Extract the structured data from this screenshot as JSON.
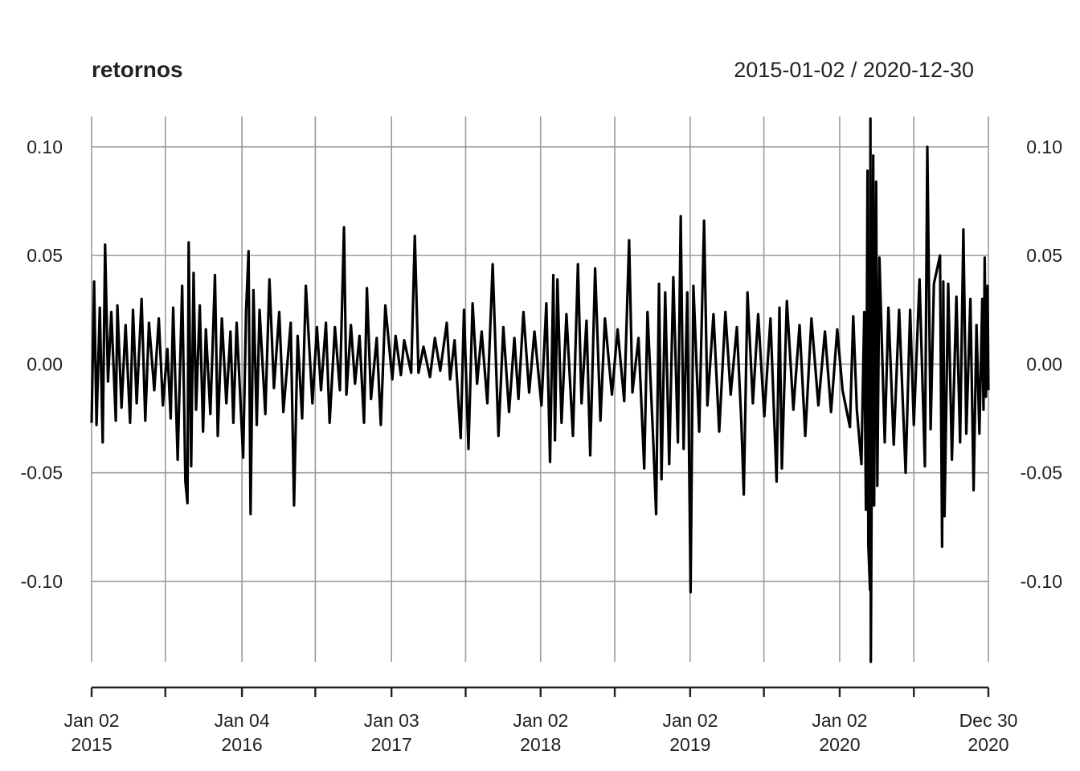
{
  "chart_data": {
    "type": "line",
    "title": "retornos",
    "date_range": "2015-01-02 / 2020-12-30",
    "x_start": "2015-01-02",
    "x_end": "2020-12-30",
    "ylim": [
      -0.137,
      0.114
    ],
    "y_ticks": [
      0.1,
      0.05,
      0.0,
      -0.05,
      -0.1
    ],
    "y_tick_labels": [
      "0.10",
      "0.05",
      "0.00",
      "-0.05",
      "-0.10"
    ],
    "x_gridlines": [
      "2015-01-02",
      "2015-07-01",
      "2016-01-04",
      "2016-07-01",
      "2017-01-03",
      "2017-07-03",
      "2018-01-02",
      "2018-07-02",
      "2019-01-02",
      "2019-07-01",
      "2020-01-02",
      "2020-07-01",
      "2020-12-30"
    ],
    "x_labels": [
      {
        "date": "2015-01-02",
        "line1": "Jan 02",
        "line2": "2015"
      },
      {
        "date": "2016-01-04",
        "line1": "Jan 04",
        "line2": "2016"
      },
      {
        "date": "2017-01-03",
        "line1": "Jan 03",
        "line2": "2017"
      },
      {
        "date": "2018-01-02",
        "line1": "Jan 02",
        "line2": "2018"
      },
      {
        "date": "2019-01-02",
        "line1": "Jan 02",
        "line2": "2019"
      },
      {
        "date": "2020-01-02",
        "line1": "Jan 02",
        "line2": "2020"
      },
      {
        "date": "2020-12-30",
        "line1": "Dec 30",
        "line2": "2020"
      }
    ],
    "grid": true,
    "series": [
      {
        "color": "#000000",
        "points": [
          [
            "2015-01-02",
            -0.027
          ],
          [
            "2015-01-08",
            0.038
          ],
          [
            "2015-01-14",
            -0.028
          ],
          [
            "2015-01-22",
            0.026
          ],
          [
            "2015-01-29",
            -0.036
          ],
          [
            "2015-02-04",
            0.055
          ],
          [
            "2015-02-11",
            -0.008
          ],
          [
            "2015-02-19",
            0.024
          ],
          [
            "2015-03-02",
            -0.026
          ],
          [
            "2015-03-06",
            0.027
          ],
          [
            "2015-03-16",
            -0.02
          ],
          [
            "2015-03-26",
            0.018
          ],
          [
            "2015-04-06",
            -0.027
          ],
          [
            "2015-04-13",
            0.025
          ],
          [
            "2015-04-22",
            -0.018
          ],
          [
            "2015-05-04",
            0.03
          ],
          [
            "2015-05-13",
            -0.026
          ],
          [
            "2015-05-22",
            0.019
          ],
          [
            "2015-06-04",
            -0.012
          ],
          [
            "2015-06-15",
            0.021
          ],
          [
            "2015-06-25",
            -0.019
          ],
          [
            "2015-07-06",
            0.007
          ],
          [
            "2015-07-14",
            -0.025
          ],
          [
            "2015-07-20",
            0.026
          ],
          [
            "2015-07-31",
            -0.044
          ],
          [
            "2015-08-11",
            0.036
          ],
          [
            "2015-08-19",
            -0.054
          ],
          [
            "2015-08-24",
            -0.064
          ],
          [
            "2015-08-27",
            0.056
          ],
          [
            "2015-09-02",
            -0.047
          ],
          [
            "2015-09-08",
            0.042
          ],
          [
            "2015-09-14",
            -0.021
          ],
          [
            "2015-09-23",
            0.027
          ],
          [
            "2015-10-01",
            -0.031
          ],
          [
            "2015-10-08",
            0.016
          ],
          [
            "2015-10-19",
            -0.023
          ],
          [
            "2015-10-30",
            0.041
          ],
          [
            "2015-11-06",
            -0.033
          ],
          [
            "2015-11-16",
            0.021
          ],
          [
            "2015-11-27",
            -0.018
          ],
          [
            "2015-12-07",
            0.015
          ],
          [
            "2015-12-14",
            -0.027
          ],
          [
            "2015-12-22",
            0.019
          ],
          [
            "2016-01-07",
            -0.043
          ],
          [
            "2016-01-14",
            0.024
          ],
          [
            "2016-01-20",
            0.052
          ],
          [
            "2016-01-25",
            -0.069
          ],
          [
            "2016-02-01",
            0.034
          ],
          [
            "2016-02-09",
            -0.028
          ],
          [
            "2016-02-16",
            0.025
          ],
          [
            "2016-03-01",
            -0.023
          ],
          [
            "2016-03-11",
            0.039
          ],
          [
            "2016-03-22",
            -0.011
          ],
          [
            "2016-04-04",
            0.024
          ],
          [
            "2016-04-14",
            -0.022
          ],
          [
            "2016-05-02",
            0.019
          ],
          [
            "2016-05-10",
            -0.065
          ],
          [
            "2016-05-19",
            0.013
          ],
          [
            "2016-05-30",
            -0.025
          ],
          [
            "2016-06-08",
            0.036
          ],
          [
            "2016-06-24",
            -0.018
          ],
          [
            "2016-07-05",
            0.017
          ],
          [
            "2016-07-15",
            -0.012
          ],
          [
            "2016-07-27",
            0.019
          ],
          [
            "2016-08-05",
            -0.027
          ],
          [
            "2016-08-18",
            0.017
          ],
          [
            "2016-08-30",
            -0.012
          ],
          [
            "2016-09-09",
            0.063
          ],
          [
            "2016-09-15",
            -0.014
          ],
          [
            "2016-09-26",
            0.018
          ],
          [
            "2016-10-06",
            -0.009
          ],
          [
            "2016-10-17",
            0.013
          ],
          [
            "2016-10-28",
            -0.027
          ],
          [
            "2016-11-04",
            0.035
          ],
          [
            "2016-11-14",
            -0.016
          ],
          [
            "2016-11-28",
            0.012
          ],
          [
            "2016-12-08",
            -0.028
          ],
          [
            "2016-12-19",
            0.027
          ],
          [
            "2017-01-05",
            -0.007
          ],
          [
            "2017-01-13",
            0.013
          ],
          [
            "2017-01-26",
            -0.005
          ],
          [
            "2017-02-03",
            0.011
          ],
          [
            "2017-02-20",
            -0.004
          ],
          [
            "2017-03-01",
            0.059
          ],
          [
            "2017-03-10",
            -0.004
          ],
          [
            "2017-03-22",
            0.008
          ],
          [
            "2017-04-07",
            -0.006
          ],
          [
            "2017-04-19",
            0.012
          ],
          [
            "2017-05-02",
            -0.003
          ],
          [
            "2017-05-18",
            0.019
          ],
          [
            "2017-05-26",
            -0.007
          ],
          [
            "2017-06-06",
            0.011
          ],
          [
            "2017-06-21",
            -0.034
          ],
          [
            "2017-06-29",
            0.025
          ],
          [
            "2017-07-10",
            -0.039
          ],
          [
            "2017-07-20",
            0.028
          ],
          [
            "2017-07-31",
            -0.009
          ],
          [
            "2017-08-11",
            0.015
          ],
          [
            "2017-08-25",
            -0.018
          ],
          [
            "2017-09-07",
            0.046
          ],
          [
            "2017-09-21",
            -0.033
          ],
          [
            "2017-10-03",
            0.017
          ],
          [
            "2017-10-17",
            -0.022
          ],
          [
            "2017-10-30",
            0.012
          ],
          [
            "2017-11-09",
            -0.016
          ],
          [
            "2017-11-21",
            0.024
          ],
          [
            "2017-12-05",
            -0.013
          ],
          [
            "2017-12-18",
            0.015
          ],
          [
            "2018-01-04",
            -0.019
          ],
          [
            "2018-01-16",
            0.028
          ],
          [
            "2018-01-25",
            -0.045
          ],
          [
            "2018-02-02",
            0.041
          ],
          [
            "2018-02-06",
            -0.035
          ],
          [
            "2018-02-12",
            0.039
          ],
          [
            "2018-02-22",
            -0.027
          ],
          [
            "2018-03-06",
            0.023
          ],
          [
            "2018-03-22",
            -0.033
          ],
          [
            "2018-04-03",
            0.046
          ],
          [
            "2018-04-12",
            -0.018
          ],
          [
            "2018-04-24",
            0.02
          ],
          [
            "2018-05-03",
            -0.042
          ],
          [
            "2018-05-15",
            0.044
          ],
          [
            "2018-05-28",
            -0.026
          ],
          [
            "2018-06-08",
            0.021
          ],
          [
            "2018-06-25",
            -0.014
          ],
          [
            "2018-07-09",
            0.016
          ],
          [
            "2018-07-25",
            -0.017
          ],
          [
            "2018-08-06",
            0.057
          ],
          [
            "2018-08-14",
            -0.013
          ],
          [
            "2018-08-29",
            0.012
          ],
          [
            "2018-09-12",
            -0.048
          ],
          [
            "2018-09-20",
            0.024
          ],
          [
            "2018-10-04",
            -0.036
          ],
          [
            "2018-10-11",
            -0.069
          ],
          [
            "2018-10-18",
            0.037
          ],
          [
            "2018-10-24",
            -0.053
          ],
          [
            "2018-11-02",
            0.033
          ],
          [
            "2018-11-12",
            -0.046
          ],
          [
            "2018-11-22",
            0.04
          ],
          [
            "2018-12-03",
            -0.036
          ],
          [
            "2018-12-10",
            0.068
          ],
          [
            "2018-12-17",
            -0.039
          ],
          [
            "2018-12-26",
            0.033
          ],
          [
            "2019-01-03",
            -0.105
          ],
          [
            "2019-01-10",
            0.036
          ],
          [
            "2019-01-24",
            -0.031
          ],
          [
            "2019-02-05",
            0.066
          ],
          [
            "2019-02-13",
            -0.019
          ],
          [
            "2019-02-28",
            0.023
          ],
          [
            "2019-03-14",
            -0.031
          ],
          [
            "2019-03-29",
            0.024
          ],
          [
            "2019-04-11",
            -0.014
          ],
          [
            "2019-04-26",
            0.017
          ],
          [
            "2019-05-07",
            -0.027
          ],
          [
            "2019-05-13",
            -0.06
          ],
          [
            "2019-05-22",
            0.033
          ],
          [
            "2019-06-04",
            -0.018
          ],
          [
            "2019-06-17",
            0.023
          ],
          [
            "2019-07-02",
            -0.024
          ],
          [
            "2019-07-17",
            0.021
          ],
          [
            "2019-08-01",
            -0.054
          ],
          [
            "2019-08-08",
            0.026
          ],
          [
            "2019-08-14",
            -0.048
          ],
          [
            "2019-08-26",
            0.029
          ],
          [
            "2019-09-11",
            -0.021
          ],
          [
            "2019-09-26",
            0.018
          ],
          [
            "2019-10-10",
            -0.033
          ],
          [
            "2019-10-25",
            0.021
          ],
          [
            "2019-11-11",
            -0.019
          ],
          [
            "2019-11-27",
            0.015
          ],
          [
            "2019-12-12",
            -0.022
          ],
          [
            "2019-12-27",
            0.016
          ],
          [
            "2020-01-09",
            -0.012
          ],
          [
            "2020-01-27",
            -0.029
          ],
          [
            "2020-02-04",
            0.022
          ],
          [
            "2020-02-13",
            -0.021
          ],
          [
            "2020-02-24",
            -0.046
          ],
          [
            "2020-03-02",
            0.024
          ],
          [
            "2020-03-06",
            -0.067
          ],
          [
            "2020-03-10",
            0.089
          ],
          [
            "2020-03-12",
            -0.083
          ],
          [
            "2020-03-16",
            -0.104
          ],
          [
            "2020-03-17",
            0.113
          ],
          [
            "2020-03-18",
            -0.137
          ],
          [
            "2020-03-24",
            0.096
          ],
          [
            "2020-03-26",
            -0.065
          ],
          [
            "2020-03-31",
            0.084
          ],
          [
            "2020-04-03",
            -0.056
          ],
          [
            "2020-04-08",
            0.049
          ],
          [
            "2020-04-21",
            -0.036
          ],
          [
            "2020-04-30",
            0.026
          ],
          [
            "2020-05-13",
            -0.037
          ],
          [
            "2020-05-26",
            0.025
          ],
          [
            "2020-06-11",
            -0.05
          ],
          [
            "2020-06-22",
            0.025
          ],
          [
            "2020-07-01",
            -0.028
          ],
          [
            "2020-07-15",
            0.039
          ],
          [
            "2020-07-28",
            -0.047
          ],
          [
            "2020-08-03",
            0.1
          ],
          [
            "2020-08-11",
            -0.03
          ],
          [
            "2020-08-19",
            0.037
          ],
          [
            "2020-09-03",
            0.05
          ],
          [
            "2020-09-08",
            -0.084
          ],
          [
            "2020-09-11",
            0.038
          ],
          [
            "2020-09-14",
            -0.07
          ],
          [
            "2020-09-23",
            0.037
          ],
          [
            "2020-10-02",
            -0.044
          ],
          [
            "2020-10-13",
            0.031
          ],
          [
            "2020-10-22",
            -0.036
          ],
          [
            "2020-10-30",
            0.062
          ],
          [
            "2020-11-06",
            -0.032
          ],
          [
            "2020-11-16",
            0.03
          ],
          [
            "2020-11-24",
            -0.058
          ],
          [
            "2020-12-01",
            0.018
          ],
          [
            "2020-12-08",
            -0.032
          ],
          [
            "2020-12-15",
            0.03
          ],
          [
            "2020-12-18",
            -0.021
          ],
          [
            "2020-12-21",
            0.049
          ],
          [
            "2020-12-24",
            -0.015
          ],
          [
            "2020-12-28",
            0.036
          ],
          [
            "2020-12-30",
            -0.012
          ]
        ]
      }
    ]
  }
}
